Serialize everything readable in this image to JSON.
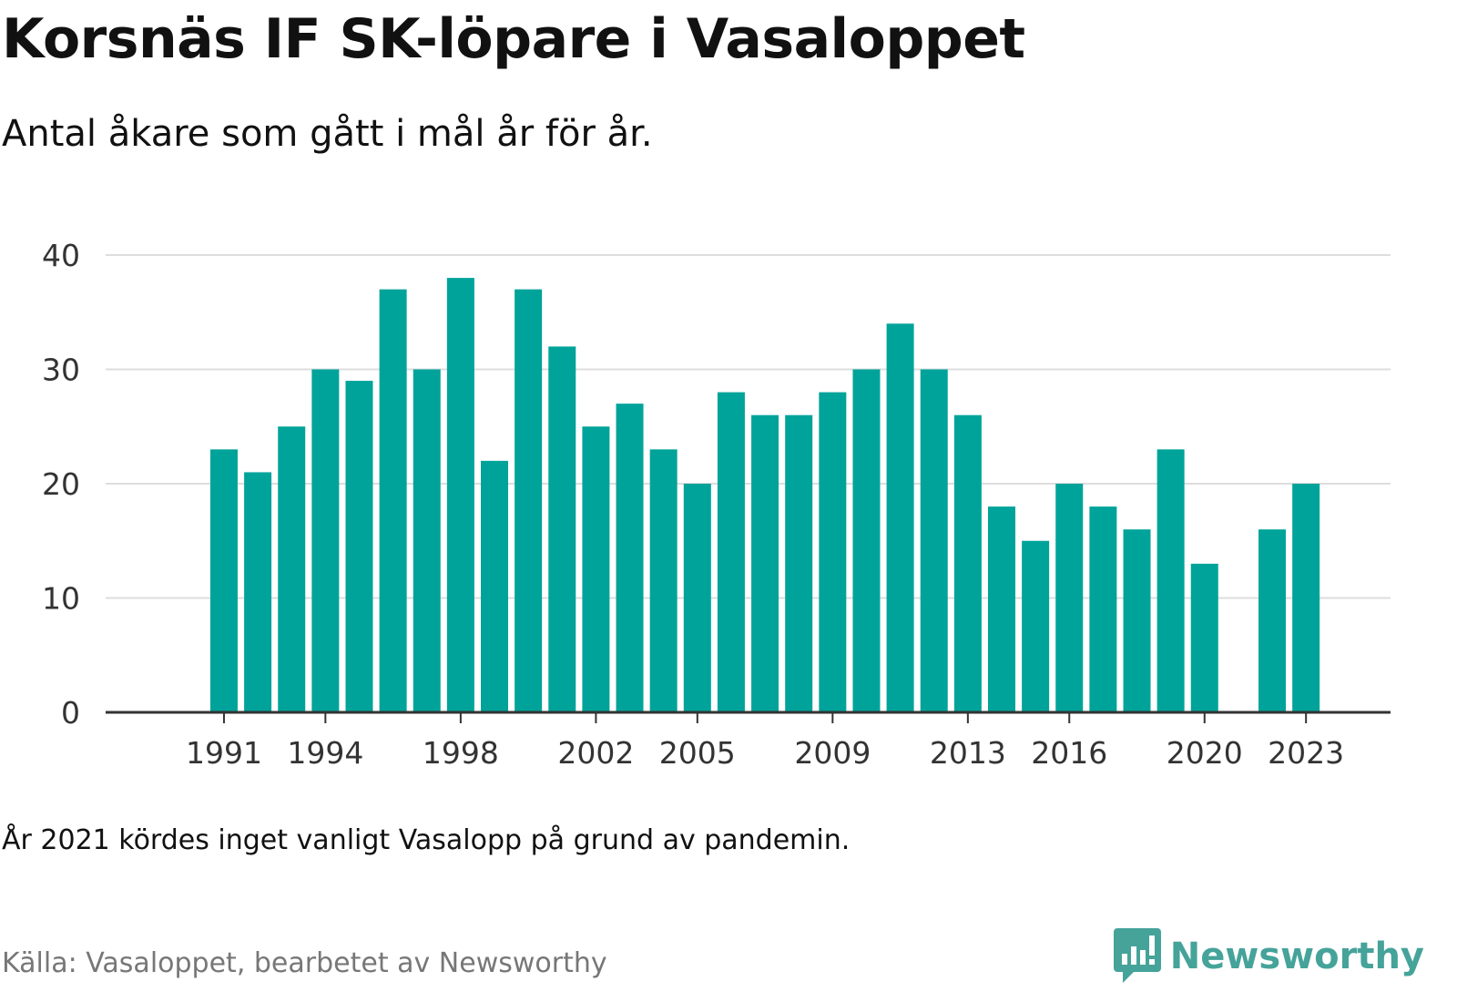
{
  "title": "Korsnäs IF SK-löpare i Vasaloppet",
  "subtitle": "Antal åkare som gått i mål år för år.",
  "note": "År 2021 kördes inget vanligt Vasalopp på grund av pandemin.",
  "source": "Källa: Vasaloppet, bearbetet av Newsworthy",
  "brand": {
    "name": "Newsworthy",
    "color": "#45a39a",
    "icon": "newsworthy-logo-icon"
  },
  "colors": {
    "bar": "#00a39a",
    "grid": "#dddddd",
    "axis": "#333333"
  },
  "chart_data": {
    "type": "bar",
    "x": [
      1991,
      1992,
      1993,
      1994,
      1995,
      1996,
      1997,
      1998,
      1999,
      2000,
      2001,
      2002,
      2003,
      2004,
      2005,
      2006,
      2007,
      2008,
      2009,
      2010,
      2011,
      2012,
      2013,
      2014,
      2015,
      2016,
      2017,
      2018,
      2019,
      2020,
      2021,
      2022,
      2023
    ],
    "values": [
      23,
      21,
      25,
      30,
      29,
      37,
      30,
      38,
      22,
      37,
      32,
      25,
      27,
      23,
      20,
      28,
      26,
      26,
      28,
      30,
      34,
      30,
      26,
      18,
      15,
      20,
      18,
      16,
      23,
      13,
      null,
      16,
      20
    ],
    "x_ticks": [
      1991,
      1994,
      1998,
      2002,
      2005,
      2009,
      2013,
      2016,
      2020,
      2023
    ],
    "y_ticks": [
      0,
      10,
      20,
      30,
      40
    ],
    "ylim": [
      0,
      40
    ],
    "xlim": [
      1987.5,
      2025.5
    ],
    "grid": true,
    "legend": "none",
    "xlabel": "",
    "ylabel": ""
  }
}
